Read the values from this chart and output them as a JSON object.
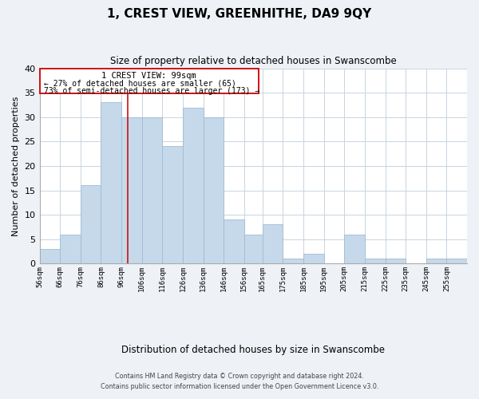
{
  "title": "1, CREST VIEW, GREENHITHE, DA9 9QY",
  "subtitle": "Size of property relative to detached houses in Swanscombe",
  "xlabel": "Distribution of detached houses by size in Swanscombe",
  "ylabel": "Number of detached properties",
  "bar_color": "#c5d9ea",
  "bar_edge_color": "#a0bcd4",
  "bg_color": "#eef2f7",
  "plot_bg_color": "#ffffff",
  "grid_color": "#c8d4df",
  "annotation_box_color": "#cc1111",
  "annotation_line1": "1 CREST VIEW: 99sqm",
  "annotation_line2": "← 27% of detached houses are smaller (65)",
  "annotation_line3": "73% of semi-detached houses are larger (173) →",
  "marker_line_color": "#cc1111",
  "categories": [
    "56sqm",
    "66sqm",
    "76sqm",
    "86sqm",
    "96sqm",
    "106sqm",
    "116sqm",
    "126sqm",
    "136sqm",
    "146sqm",
    "156sqm",
    "165sqm",
    "175sqm",
    "185sqm",
    "195sqm",
    "205sqm",
    "215sqm",
    "225sqm",
    "235sqm",
    "245sqm",
    "255sqm"
  ],
  "bin_edges": [
    56,
    66,
    76,
    86,
    96,
    106,
    116,
    126,
    136,
    146,
    156,
    165,
    175,
    185,
    195,
    205,
    215,
    225,
    235,
    245,
    255
  ],
  "bin_widths": [
    10,
    10,
    10,
    10,
    10,
    10,
    10,
    10,
    10,
    10,
    9,
    10,
    10,
    10,
    10,
    10,
    10,
    10,
    10,
    10,
    10
  ],
  "values": [
    3,
    6,
    16,
    33,
    30,
    30,
    24,
    32,
    30,
    9,
    6,
    8,
    1,
    2,
    0,
    6,
    1,
    1,
    0,
    1,
    1
  ],
  "ylim": [
    0,
    40
  ],
  "yticks": [
    0,
    5,
    10,
    15,
    20,
    25,
    30,
    35,
    40
  ],
  "footer_line1": "Contains HM Land Registry data © Crown copyright and database right 2024.",
  "footer_line2": "Contains public sector information licensed under the Open Government Licence v3.0."
}
